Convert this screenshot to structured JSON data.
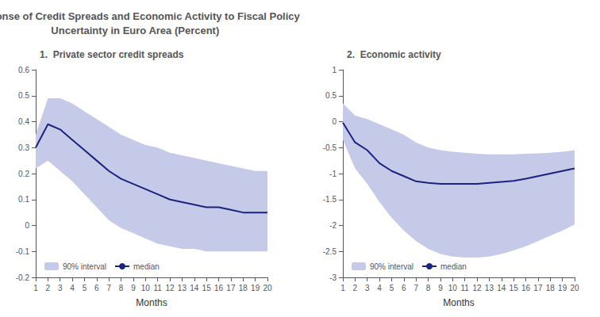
{
  "title": "Response of Credit Spreads and Economic Activity to Fiscal Policy\nUncertainty in Euro Area (Percent)",
  "chart_data": [
    {
      "type": "line",
      "title": "1.  Private sector credit spreads",
      "xlabel": "Months",
      "x": [
        1,
        2,
        3,
        4,
        5,
        6,
        7,
        8,
        9,
        10,
        11,
        12,
        13,
        14,
        15,
        16,
        17,
        18,
        19,
        20
      ],
      "xlim": [
        1,
        20
      ],
      "xticks": [
        1,
        2,
        3,
        4,
        5,
        6,
        7,
        8,
        9,
        10,
        11,
        12,
        13,
        14,
        15,
        16,
        17,
        18,
        19,
        20
      ],
      "ylim": [
        -0.2,
        0.6
      ],
      "yticks": [
        -0.2,
        -0.1,
        0,
        0.1,
        0.2,
        0.3,
        0.4,
        0.5,
        0.6
      ],
      "grid": false,
      "legend": "lower left",
      "series": [
        {
          "name": "90% interval",
          "type": "band",
          "color": "#c5cae9",
          "lower": [
            0.22,
            0.25,
            0.21,
            0.17,
            0.12,
            0.07,
            0.02,
            -0.01,
            -0.03,
            -0.05,
            -0.07,
            -0.08,
            -0.09,
            -0.09,
            -0.1,
            -0.1,
            -0.1,
            -0.1,
            -0.1,
            -0.1
          ],
          "upper": [
            0.35,
            0.49,
            0.49,
            0.47,
            0.44,
            0.41,
            0.38,
            0.35,
            0.33,
            0.31,
            0.3,
            0.28,
            0.27,
            0.26,
            0.25,
            0.24,
            0.23,
            0.22,
            0.21,
            0.21
          ]
        },
        {
          "name": "median",
          "type": "line",
          "color": "#1a237e",
          "values": [
            0.3,
            0.39,
            0.37,
            0.33,
            0.29,
            0.25,
            0.21,
            0.18,
            0.16,
            0.14,
            0.12,
            0.1,
            0.09,
            0.08,
            0.07,
            0.07,
            0.06,
            0.05,
            0.05,
            0.05
          ]
        }
      ]
    },
    {
      "type": "line",
      "title": "2.  Economic activity",
      "xlabel": "Months",
      "x": [
        1,
        2,
        3,
        4,
        5,
        6,
        7,
        8,
        9,
        10,
        11,
        12,
        13,
        14,
        15,
        16,
        17,
        18,
        19,
        20
      ],
      "xlim": [
        1,
        20
      ],
      "xticks": [
        1,
        2,
        3,
        4,
        5,
        6,
        7,
        8,
        9,
        10,
        11,
        12,
        13,
        14,
        15,
        16,
        17,
        18,
        19,
        20
      ],
      "ylim": [
        -3.0,
        1.0
      ],
      "yticks": [
        -3,
        -2.5,
        -2,
        -1.5,
        -1,
        -0.5,
        0,
        0.5,
        1
      ],
      "grid": false,
      "legend": "lower left",
      "series": [
        {
          "name": "90% interval",
          "type": "band",
          "color": "#c5cae9",
          "lower": [
            -0.35,
            -0.9,
            -1.2,
            -1.55,
            -1.85,
            -2.1,
            -2.3,
            -2.45,
            -2.55,
            -2.6,
            -2.62,
            -2.62,
            -2.6,
            -2.55,
            -2.48,
            -2.4,
            -2.3,
            -2.2,
            -2.1,
            -1.98
          ],
          "upper": [
            0.35,
            0.12,
            0.05,
            -0.05,
            -0.15,
            -0.25,
            -0.4,
            -0.5,
            -0.55,
            -0.58,
            -0.6,
            -0.62,
            -0.63,
            -0.63,
            -0.63,
            -0.62,
            -0.61,
            -0.6,
            -0.58,
            -0.55
          ]
        },
        {
          "name": "median",
          "type": "line",
          "color": "#1a237e",
          "values": [
            -0.02,
            -0.4,
            -0.55,
            -0.8,
            -0.95,
            -1.05,
            -1.15,
            -1.18,
            -1.2,
            -1.2,
            -1.2,
            -1.2,
            -1.18,
            -1.16,
            -1.14,
            -1.1,
            -1.05,
            -1.0,
            -0.95,
            -0.9
          ]
        }
      ]
    }
  ]
}
